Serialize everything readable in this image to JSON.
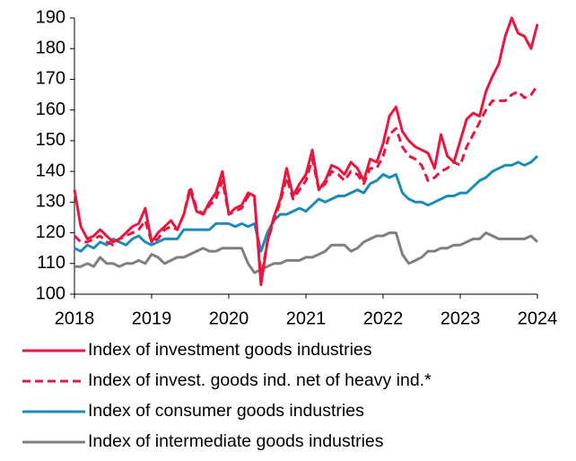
{
  "chart_data": {
    "type": "line",
    "x": [
      2018,
      2018.083,
      2018.167,
      2018.25,
      2018.333,
      2018.417,
      2018.5,
      2018.583,
      2018.667,
      2018.75,
      2018.833,
      2018.917,
      2019,
      2019.083,
      2019.167,
      2019.25,
      2019.333,
      2019.417,
      2019.5,
      2019.583,
      2019.667,
      2019.75,
      2019.833,
      2019.917,
      2020,
      2020.083,
      2020.167,
      2020.25,
      2020.333,
      2020.417,
      2020.5,
      2020.583,
      2020.667,
      2020.75,
      2020.833,
      2020.917,
      2021,
      2021.083,
      2021.167,
      2021.25,
      2021.333,
      2021.417,
      2021.5,
      2021.583,
      2021.667,
      2021.75,
      2021.833,
      2021.917,
      2022,
      2022.083,
      2022.167,
      2022.25,
      2022.333,
      2022.417,
      2022.5,
      2022.583,
      2022.667,
      2022.75,
      2022.833,
      2022.917,
      2023,
      2023.083,
      2023.167,
      2023.25,
      2023.333,
      2023.417,
      2023.5,
      2023.583,
      2023.667,
      2023.75,
      2023.833,
      2023.917,
      2024
    ],
    "series": [
      {
        "name": "Index of investment goods industries",
        "color": "#e8173f",
        "dashed": false,
        "values": [
          134,
          122,
          118,
          119,
          121,
          119,
          117,
          118,
          120,
          122,
          123,
          128,
          117,
          120,
          122,
          124,
          121,
          126,
          134,
          127,
          126,
          130,
          133,
          140,
          126,
          128,
          129,
          133,
          132,
          103,
          117,
          125,
          131,
          141,
          132,
          136,
          139,
          147,
          134,
          137,
          142,
          141,
          139,
          143,
          141,
          137,
          144,
          143,
          149,
          158,
          161,
          153,
          150,
          148,
          147,
          146,
          141,
          152,
          145,
          143,
          150,
          157,
          159,
          158,
          166,
          171,
          175,
          184,
          190,
          185,
          184,
          180,
          188
        ]
      },
      {
        "name": "Index of invest. goods ind. net of heavy ind.*",
        "color": "#e8173f",
        "dashed": true,
        "values": [
          119,
          117,
          117,
          118,
          119,
          117,
          116,
          118,
          119,
          120,
          121,
          124,
          117,
          118,
          121,
          122,
          121,
          126,
          135,
          128,
          126,
          129,
          131,
          137,
          126,
          127,
          128,
          132,
          131,
          105,
          117,
          124,
          130,
          138,
          131,
          134,
          137,
          144,
          134,
          136,
          140,
          139,
          137,
          140,
          139,
          136,
          141,
          141,
          145,
          152,
          154,
          148,
          145,
          144,
          142,
          137,
          138,
          140,
          141,
          143,
          142,
          148,
          152,
          156,
          160,
          163,
          163,
          163,
          165,
          166,
          164,
          165,
          168
        ]
      },
      {
        "name": "Index of consumer goods industries",
        "color": "#1b8bb8",
        "dashed": false,
        "values": [
          115,
          114,
          116,
          115,
          117,
          116,
          118,
          117,
          116,
          118,
          119,
          117,
          116,
          117,
          118,
          118,
          118,
          121,
          121,
          121,
          121,
          121,
          123,
          123,
          123,
          122,
          123,
          122,
          123,
          114,
          120,
          124,
          126,
          126,
          127,
          128,
          127,
          129,
          131,
          130,
          131,
          132,
          132,
          133,
          134,
          133,
          136,
          137,
          139,
          138,
          139,
          133,
          131,
          130,
          130,
          129,
          130,
          131,
          132,
          132,
          133,
          133,
          135,
          137,
          138,
          140,
          141,
          142,
          142,
          143,
          142,
          143,
          145
        ]
      },
      {
        "name": "Index of intermediate goods industries",
        "color": "#7f7f7f",
        "dashed": false,
        "values": [
          109,
          109,
          110,
          109,
          112,
          110,
          110,
          109,
          110,
          110,
          111,
          110,
          113,
          112,
          110,
          111,
          112,
          112,
          113,
          114,
          115,
          114,
          114,
          115,
          115,
          115,
          115,
          110,
          107,
          108,
          109,
          110,
          110,
          111,
          111,
          111,
          112,
          112,
          113,
          114,
          116,
          116,
          116,
          114,
          115,
          117,
          118,
          119,
          119,
          120,
          120,
          113,
          110,
          111,
          112,
          114,
          114,
          115,
          115,
          116,
          116,
          117,
          118,
          118,
          120,
          119,
          118,
          118,
          118,
          118,
          118,
          119,
          117
        ]
      }
    ],
    "xlim": [
      2018,
      2024
    ],
    "xticks": [
      2018,
      2019,
      2020,
      2021,
      2022,
      2023,
      2024
    ],
    "ylim": [
      100,
      190
    ],
    "yticks": [
      100,
      110,
      120,
      130,
      140,
      150,
      160,
      170,
      180,
      190
    ],
    "grid": false,
    "legend": "bottom"
  }
}
